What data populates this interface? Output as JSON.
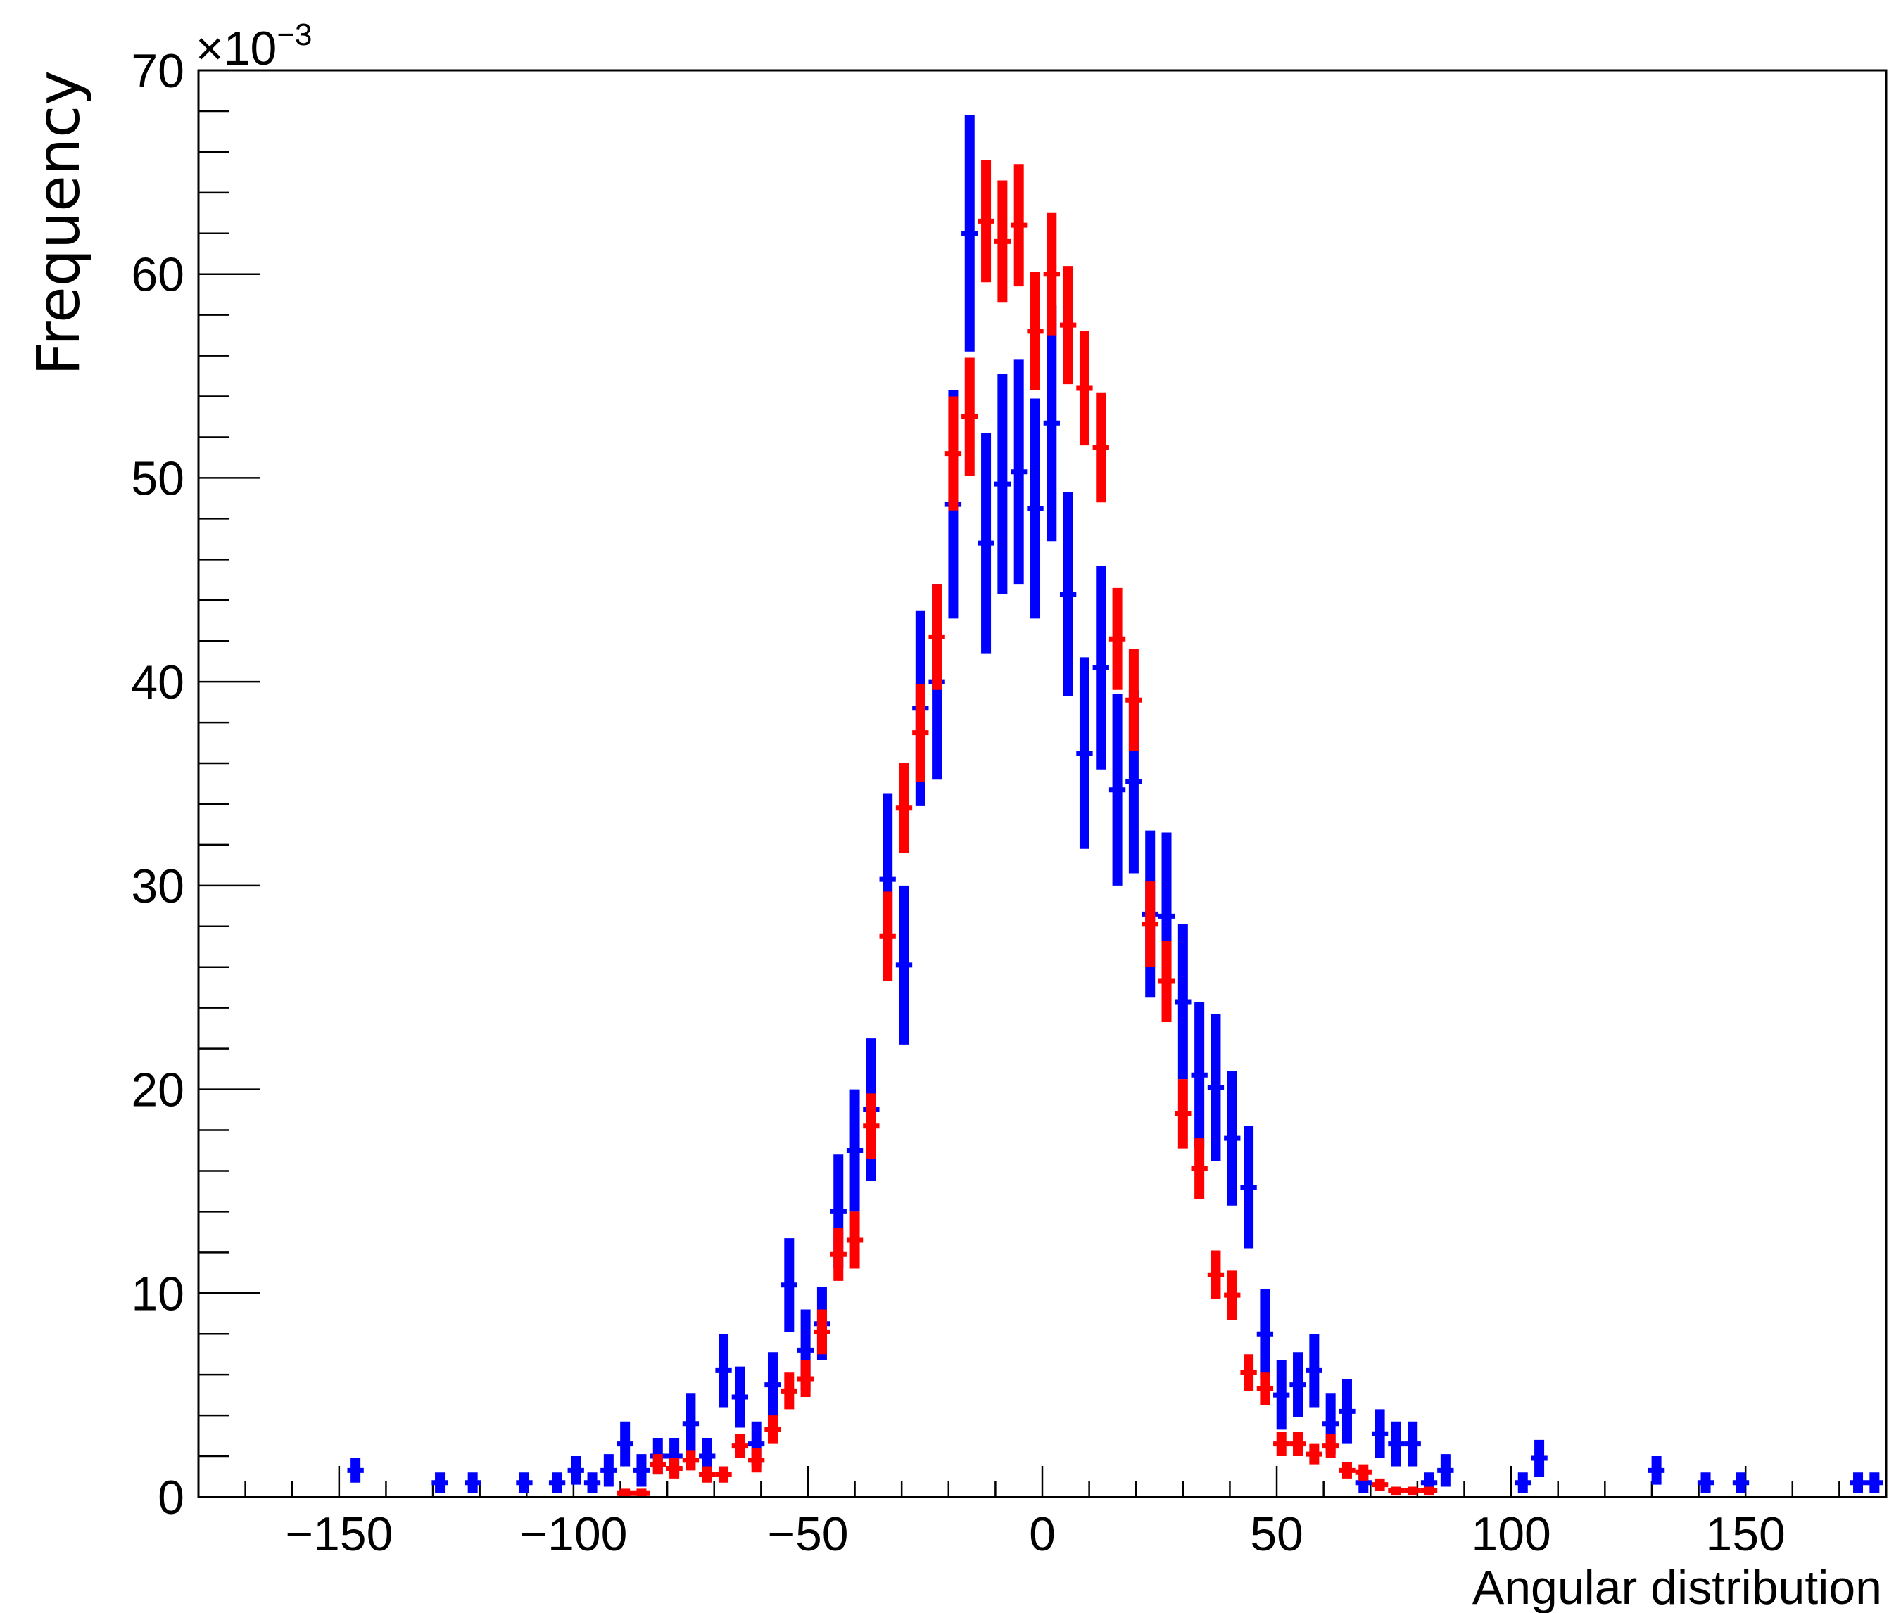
{
  "chart_data": {
    "type": "scatter",
    "xlabel": "Angular distribution",
    "ylabel": "Frequency",
    "y_multiplier": "×10",
    "y_multiplier_exponent": "−3",
    "xlim": [
      -180,
      180
    ],
    "ylim": [
      0,
      70
    ],
    "x_ticks": [
      -150,
      -100,
      -50,
      0,
      50,
      100,
      150
    ],
    "x_tick_labels": [
      "−150",
      "−100",
      "−50",
      "0",
      "50",
      "100",
      "150"
    ],
    "y_ticks": [
      0,
      10,
      20,
      30,
      40,
      50,
      60,
      70
    ],
    "y_tick_labels": [
      "0",
      "10",
      "20",
      "30",
      "40",
      "50",
      "60",
      "70"
    ],
    "grid": false,
    "legend": "none",
    "series": [
      {
        "color": "#0000ff",
        "points": [
          [
            -146.5,
            1.3,
            0.6
          ],
          [
            -128.5,
            0.7,
            0.5
          ],
          [
            -121.5,
            0.7,
            0.5
          ],
          [
            -110.5,
            0.7,
            0.5
          ],
          [
            -103.5,
            0.7,
            0.5
          ],
          [
            -99.5,
            1.3,
            0.7
          ],
          [
            -96,
            0.7,
            0.5
          ],
          [
            -92.5,
            1.3,
            0.8
          ],
          [
            -89,
            2.6,
            1.1
          ],
          [
            -85.5,
            1.3,
            0.8
          ],
          [
            -82,
            2.0,
            0.9
          ],
          [
            -78.5,
            2.0,
            0.9
          ],
          [
            -75,
            3.6,
            1.5
          ],
          [
            -71.5,
            2.0,
            0.9
          ],
          [
            -68,
            6.2,
            1.8
          ],
          [
            -64.5,
            4.9,
            1.5
          ],
          [
            -61,
            2.6,
            1.1
          ],
          [
            -57.5,
            5.5,
            1.6
          ],
          [
            -54,
            10.4,
            2.3
          ],
          [
            -50.5,
            7.2,
            2.0
          ],
          [
            -47,
            8.5,
            1.8
          ],
          [
            -43.5,
            14.0,
            2.8
          ],
          [
            -40,
            17.0,
            3.0
          ],
          [
            -36.5,
            19.0,
            3.5
          ],
          [
            -33,
            30.3,
            4.2
          ],
          [
            -29.5,
            26.1,
            3.9
          ],
          [
            -26,
            38.7,
            4.8
          ],
          [
            -22.5,
            40.0,
            4.8
          ],
          [
            -19,
            48.7,
            5.6
          ],
          [
            -15.5,
            62.0,
            5.8
          ],
          [
            -12,
            46.8,
            5.4
          ],
          [
            -8.5,
            49.7,
            5.4
          ],
          [
            -5,
            50.3,
            5.5
          ],
          [
            -1.5,
            48.5,
            5.4
          ],
          [
            2,
            52.7,
            5.8
          ],
          [
            5.5,
            44.3,
            5.0
          ],
          [
            9,
            36.5,
            4.7
          ],
          [
            12.5,
            40.7,
            5.0
          ],
          [
            16,
            34.7,
            4.7
          ],
          [
            19.5,
            35.1,
            4.5
          ],
          [
            23,
            28.6,
            4.1
          ],
          [
            26.5,
            28.5,
            4.1
          ],
          [
            30,
            24.3,
            3.8
          ],
          [
            33.5,
            20.7,
            3.6
          ],
          [
            37,
            20.1,
            3.6
          ],
          [
            40.5,
            17.6,
            3.3
          ],
          [
            44,
            15.2,
            3.0
          ],
          [
            47.5,
            8.0,
            2.2
          ],
          [
            51,
            5.0,
            1.7
          ],
          [
            54.5,
            5.5,
            1.6
          ],
          [
            58,
            6.2,
            1.8
          ],
          [
            61.5,
            3.6,
            1.5
          ],
          [
            65,
            4.2,
            1.6
          ],
          [
            68.5,
            0.7,
            0.5
          ],
          [
            72,
            3.1,
            1.2
          ],
          [
            75.5,
            2.6,
            1.1
          ],
          [
            79,
            2.6,
            1.1
          ],
          [
            82.5,
            0.7,
            0.5
          ],
          [
            86,
            1.3,
            0.8
          ],
          [
            102.5,
            0.7,
            0.5
          ],
          [
            106,
            1.9,
            0.9
          ],
          [
            131,
            1.3,
            0.7
          ],
          [
            141.5,
            0.7,
            0.5
          ],
          [
            149,
            0.7,
            0.5
          ],
          [
            174,
            0.7,
            0.5
          ],
          [
            177.5,
            0.7,
            0.5
          ]
        ]
      },
      {
        "color": "#ff0000",
        "points": [
          [
            -89,
            0.2,
            0.2
          ],
          [
            -85.5,
            0.2,
            0.2
          ],
          [
            -82,
            1.6,
            0.5
          ],
          [
            -78.5,
            1.4,
            0.5
          ],
          [
            -75,
            1.8,
            0.5
          ],
          [
            -71.5,
            1.1,
            0.4
          ],
          [
            -68,
            1.1,
            0.4
          ],
          [
            -64.5,
            2.5,
            0.6
          ],
          [
            -61,
            1.8,
            0.6
          ],
          [
            -57.5,
            3.3,
            0.7
          ],
          [
            -54,
            5.2,
            0.9
          ],
          [
            -50.5,
            5.8,
            0.9
          ],
          [
            -47,
            8.1,
            1.1
          ],
          [
            -43.5,
            11.9,
            1.3
          ],
          [
            -40,
            12.6,
            1.4
          ],
          [
            -36.5,
            18.2,
            1.6
          ],
          [
            -33,
            27.5,
            2.2
          ],
          [
            -29.5,
            33.8,
            2.2
          ],
          [
            -26,
            37.5,
            2.4
          ],
          [
            -22.5,
            42.2,
            2.6
          ],
          [
            -19,
            51.2,
            2.8
          ],
          [
            -15.5,
            53.0,
            2.9
          ],
          [
            -12,
            62.6,
            3.0
          ],
          [
            -8.5,
            61.6,
            3.0
          ],
          [
            -5,
            62.4,
            3.0
          ],
          [
            -1.5,
            57.2,
            2.9
          ],
          [
            2,
            60.0,
            3.0
          ],
          [
            5.5,
            57.5,
            2.9
          ],
          [
            9,
            54.4,
            2.8
          ],
          [
            12.5,
            51.5,
            2.7
          ],
          [
            16,
            42.1,
            2.5
          ],
          [
            19.5,
            39.1,
            2.5
          ],
          [
            23,
            28.1,
            2.1
          ],
          [
            26.5,
            25.3,
            2.0
          ],
          [
            30,
            18.8,
            1.7
          ],
          [
            33.5,
            16.1,
            1.5
          ],
          [
            37,
            10.9,
            1.2
          ],
          [
            40.5,
            9.9,
            1.2
          ],
          [
            44,
            6.1,
            0.9
          ],
          [
            47.5,
            5.3,
            0.8
          ],
          [
            51,
            2.6,
            0.6
          ],
          [
            54.5,
            2.6,
            0.6
          ],
          [
            58,
            2.1,
            0.5
          ],
          [
            61.5,
            2.5,
            0.6
          ],
          [
            65,
            1.3,
            0.4
          ],
          [
            68.5,
            1.2,
            0.4
          ],
          [
            72,
            0.6,
            0.3
          ],
          [
            75.5,
            0.3,
            0.2
          ],
          [
            79,
            0.3,
            0.2
          ],
          [
            82.5,
            0.3,
            0.2
          ]
        ]
      }
    ]
  }
}
